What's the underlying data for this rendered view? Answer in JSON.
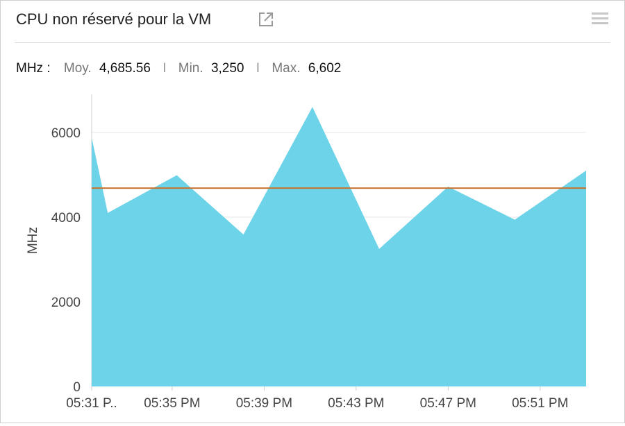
{
  "widget": {
    "title": "CPU non réservé pour la VM",
    "popout_icon": "external-link-icon",
    "menu_icon": "hamburger-menu-icon"
  },
  "stats": {
    "unit_label": "MHz :",
    "avg_label": "Moy.",
    "avg_value": "4,685.56",
    "min_label": "Min.",
    "min_value": "3,250",
    "max_label": "Max.",
    "max_value": "6,602",
    "separator": "I"
  },
  "colors": {
    "area_fill": "#6dd3e8",
    "avg_line": "#c8722e",
    "grid": "#e6e6e6",
    "axis": "#cccccc"
  },
  "chart_data": {
    "type": "area",
    "title": "CPU non réservé pour la VM",
    "xlabel": "",
    "ylabel": "MHz",
    "ylim": [
      0,
      6900
    ],
    "yticks": [
      0,
      2000,
      4000,
      6000
    ],
    "xlim": [
      0,
      21.5
    ],
    "x_ticks": [
      {
        "x": 0,
        "label": "05:31 P.."
      },
      {
        "x": 3.5,
        "label": "05:35 PM"
      },
      {
        "x": 7.5,
        "label": "05:39 PM"
      },
      {
        "x": 11.5,
        "label": "05:43 PM"
      },
      {
        "x": 15.5,
        "label": "05:47 PM"
      },
      {
        "x": 19.5,
        "label": "05:51 PM"
      }
    ],
    "series": [
      {
        "x": [
          0,
          0.7,
          3.7,
          6.6,
          9.6,
          12.5,
          15.5,
          18.4,
          21.5
        ],
        "values": [
          5880,
          4100,
          4990,
          3590,
          6602,
          3250,
          4720,
          3940,
          5100
        ]
      }
    ],
    "average": 4685.56,
    "grid": true,
    "legend": "none"
  }
}
